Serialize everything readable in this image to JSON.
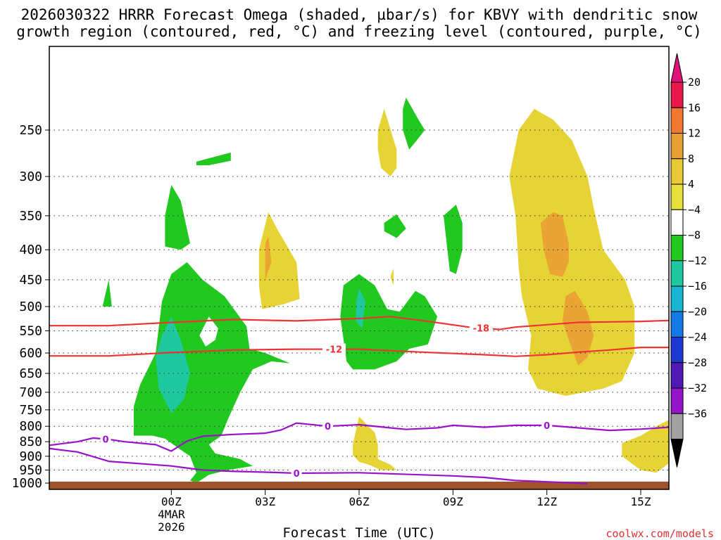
{
  "chart_data": {
    "type": "heatmap",
    "title_line1": "2026030322 HRRR Forecast Omega (shaded, µbar/s) for KBVY with dendritic snow",
    "title_line2": "growth region (contoured, red, °C) and freezing level (contoured, purple, °C)",
    "xlabel": "Forecast Time (UTC)",
    "credit": "coolwx.com/models",
    "x_range_hours": [
      -3.9,
      15.9
    ],
    "y_range_hpa": [
      1025,
      180
    ],
    "x_ticks": [
      {
        "hour": 0,
        "label": "00Z",
        "sub1": "4MAR",
        "sub2": "2026"
      },
      {
        "hour": 3,
        "label": "03Z"
      },
      {
        "hour": 6,
        "label": "06Z"
      },
      {
        "hour": 9,
        "label": "09Z"
      },
      {
        "hour": 12,
        "label": "12Z"
      },
      {
        "hour": 15,
        "label": "15Z"
      }
    ],
    "y_ticks": [
      250,
      300,
      350,
      400,
      450,
      500,
      550,
      600,
      650,
      700,
      750,
      800,
      850,
      900,
      950,
      1000
    ],
    "colorbar": {
      "labels": [
        "20",
        "16",
        "12",
        "8",
        "4",
        "−4",
        "−8",
        "−12",
        "−16",
        "−20",
        "−24",
        "−28",
        "−32",
        "−36"
      ],
      "colors": [
        "#e8194a",
        "#f07830",
        "#e9a032",
        "#e6c934",
        "#e9df3c",
        "#ffffff",
        "#20c820",
        "#20c8a0",
        "#18b4d2",
        "#1478e6",
        "#2038d2",
        "#5018b4",
        "#9614c8",
        "#a0a0a0",
        "#000000",
        "#e0117a"
      ]
    },
    "contours": [
      {
        "name": "temp -18C",
        "color": "#ee3333",
        "label": "-18",
        "label_hour": 9.9,
        "points": [
          [
            -3.9,
            539
          ],
          [
            -2,
            539
          ],
          [
            0,
            532
          ],
          [
            2,
            526
          ],
          [
            4,
            529
          ],
          [
            6,
            524
          ],
          [
            7,
            520
          ],
          [
            8,
            528
          ],
          [
            9.5,
            542
          ],
          [
            10.5,
            547
          ],
          [
            11,
            542
          ],
          [
            13,
            532
          ],
          [
            15,
            530
          ],
          [
            15.9,
            528
          ]
        ]
      },
      {
        "name": "temp -12C",
        "color": "#ee3333",
        "label": "-12",
        "label_hour": 5.2,
        "points": [
          [
            -3.9,
            607
          ],
          [
            -2,
            607
          ],
          [
            0,
            599
          ],
          [
            2,
            593
          ],
          [
            4,
            591
          ],
          [
            6,
            591
          ],
          [
            8,
            598
          ],
          [
            10,
            604
          ],
          [
            11,
            608
          ],
          [
            12,
            604
          ],
          [
            13,
            598
          ],
          [
            14,
            593
          ],
          [
            15,
            587
          ],
          [
            15.9,
            587
          ]
        ]
      },
      {
        "name": "freezing level 0C upper",
        "color": "#9b10c9",
        "label": "0",
        "label_hour": 5.0,
        "labels_extra": [
          {
            "hour": -2.1,
            "label": "0"
          },
          {
            "hour": 12.0,
            "label": "0"
          }
        ],
        "points": [
          [
            -3.9,
            862
          ],
          [
            -3,
            850
          ],
          [
            -2.5,
            838
          ],
          [
            -2,
            842
          ],
          [
            -1.5,
            850
          ],
          [
            -0.5,
            860
          ],
          [
            0,
            882
          ],
          [
            0.5,
            848
          ],
          [
            1,
            832
          ],
          [
            2,
            826
          ],
          [
            3,
            822
          ],
          [
            3.5,
            812
          ],
          [
            4,
            790
          ],
          [
            5,
            800
          ],
          [
            6,
            795
          ],
          [
            7,
            805
          ],
          [
            7.5,
            810
          ],
          [
            8.5,
            805
          ],
          [
            9,
            797
          ],
          [
            10,
            803
          ],
          [
            11,
            797
          ],
          [
            12,
            797
          ],
          [
            13,
            805
          ],
          [
            14,
            813
          ],
          [
            15,
            809
          ],
          [
            15.9,
            803
          ]
        ]
      },
      {
        "name": "freezing level 0C lower",
        "color": "#9b10c9",
        "label": "0",
        "label_hour": 4.0,
        "points": [
          [
            -3.9,
            873
          ],
          [
            -3,
            885
          ],
          [
            -2,
            918
          ],
          [
            0,
            935
          ],
          [
            1,
            950
          ],
          [
            2,
            955
          ],
          [
            3,
            958
          ],
          [
            4,
            962
          ],
          [
            6,
            960
          ],
          [
            9,
            972
          ],
          [
            10,
            978
          ],
          [
            11,
            990
          ],
          [
            12,
            995
          ],
          [
            13,
            1000
          ],
          [
            13.3,
            1003
          ]
        ]
      }
    ],
    "regions_note": "shaded omega polygons in data units [hour, hPa]",
    "regions": [
      {
        "level": "-8",
        "color": "#20c820",
        "points": [
          [
            -1.2,
            830
          ],
          [
            -1.2,
            740
          ],
          [
            -1,
            680
          ],
          [
            -0.5,
            600
          ],
          [
            -0.3,
            490
          ],
          [
            0,
            440
          ],
          [
            0.5,
            420
          ],
          [
            1,
            450
          ],
          [
            1.7,
            480
          ],
          [
            2,
            505
          ],
          [
            2.4,
            540
          ],
          [
            2.5,
            590
          ],
          [
            3,
            600
          ],
          [
            3.8,
            625
          ],
          [
            3.2,
            620
          ],
          [
            2.6,
            640
          ],
          [
            2.2,
            700
          ],
          [
            1.8,
            780
          ],
          [
            1.6,
            830
          ],
          [
            1.2,
            860
          ],
          [
            1.4,
            890
          ],
          [
            2.2,
            910
          ],
          [
            2.6,
            935
          ],
          [
            1.8,
            950
          ],
          [
            1.2,
            968
          ],
          [
            0.8,
            1000
          ],
          [
            0.6,
            990
          ],
          [
            0.8,
            960
          ],
          [
            0.6,
            900
          ],
          [
            0.2,
            870
          ],
          [
            -0.2,
            840
          ],
          [
            -0.6,
            830
          ]
        ]
      },
      {
        "level": "-8 hole",
        "color": "#ffffff",
        "points": [
          [
            1.2,
            520
          ],
          [
            1.5,
            545
          ],
          [
            1.4,
            570
          ],
          [
            1.1,
            585
          ],
          [
            0.9,
            560
          ]
        ]
      },
      {
        "level": "-12",
        "color": "#20c8a0",
        "points": [
          [
            0,
            520
          ],
          [
            0.3,
            570
          ],
          [
            0.6,
            650
          ],
          [
            0.4,
            720
          ],
          [
            0,
            760
          ],
          [
            -0.4,
            690
          ],
          [
            -0.5,
            610
          ],
          [
            -0.3,
            560
          ]
        ]
      },
      {
        "level": "-8",
        "color": "#20c820",
        "points": [
          [
            -2.2,
            500
          ],
          [
            -2.0,
            450
          ],
          [
            -1.9,
            500
          ]
        ]
      },
      {
        "level": "-8",
        "color": "#20c820",
        "points": [
          [
            0.8,
            283
          ],
          [
            1.9,
            273
          ],
          [
            1.9,
            282
          ],
          [
            1.2,
            287
          ],
          [
            0.8,
            287
          ]
        ]
      },
      {
        "level": "-8",
        "color": "#20c820",
        "points": [
          [
            -0.2,
            350
          ],
          [
            0,
            310
          ],
          [
            0.3,
            330
          ],
          [
            0.6,
            390
          ],
          [
            0.3,
            400
          ],
          [
            -0.2,
            395
          ]
        ]
      },
      {
        "level": "-8",
        "color": "#20c820",
        "points": [
          [
            5.6,
            620
          ],
          [
            5.4,
            520
          ],
          [
            5.5,
            460
          ],
          [
            6,
            440
          ],
          [
            6.5,
            460
          ],
          [
            6.9,
            505
          ],
          [
            7.3,
            510
          ],
          [
            7.8,
            470
          ],
          [
            8.1,
            480
          ],
          [
            8.5,
            520
          ],
          [
            8.2,
            580
          ],
          [
            7.6,
            590
          ],
          [
            7.2,
            620
          ],
          [
            6.5,
            640
          ],
          [
            5.8,
            640
          ]
        ]
      },
      {
        "level": "-12",
        "color": "#20c8a0",
        "points": [
          [
            6.0,
            465
          ],
          [
            6.2,
            490
          ],
          [
            6.1,
            545
          ],
          [
            5.9,
            530
          ],
          [
            5.9,
            495
          ]
        ]
      },
      {
        "level": "-8",
        "color": "#20c820",
        "points": [
          [
            7.5,
            220
          ],
          [
            7.9,
            240
          ],
          [
            8.1,
            250
          ],
          [
            7.8,
            262
          ],
          [
            7.6,
            270
          ],
          [
            7.4,
            250
          ],
          [
            7.4,
            230
          ]
        ]
      },
      {
        "level": "-8",
        "color": "#20c820",
        "points": [
          [
            6.8,
            360
          ],
          [
            7.2,
            348
          ],
          [
            7.5,
            368
          ],
          [
            7.2,
            382
          ],
          [
            6.8,
            372
          ]
        ]
      },
      {
        "level": "-8",
        "color": "#20c820",
        "points": [
          [
            8.8,
            390
          ],
          [
            8.7,
            350
          ],
          [
            9.1,
            335
          ],
          [
            9.3,
            360
          ],
          [
            9.3,
            400
          ],
          [
            9.1,
            440
          ],
          [
            8.9,
            435
          ]
        ]
      },
      {
        "level": "4",
        "color": "#e6d436",
        "points": [
          [
            2.8,
            400
          ],
          [
            3.1,
            345
          ],
          [
            3.4,
            370
          ],
          [
            4,
            420
          ],
          [
            4.1,
            485
          ],
          [
            3.6,
            495
          ],
          [
            2.9,
            505
          ],
          [
            2.8,
            460
          ]
        ]
      },
      {
        "level": "8",
        "color": "#e9a434",
        "points": [
          [
            3.0,
            390
          ],
          [
            3.1,
            380
          ],
          [
            3.2,
            420
          ],
          [
            3.0,
            450
          ]
        ]
      },
      {
        "level": "4",
        "color": "#e6d436",
        "points": [
          [
            6.6,
            250
          ],
          [
            6.8,
            230
          ],
          [
            7.2,
            270
          ],
          [
            7.2,
            290
          ],
          [
            7,
            300
          ],
          [
            6.7,
            290
          ],
          [
            6.6,
            270
          ]
        ]
      },
      {
        "level": "4",
        "color": "#e6d436",
        "points": [
          [
            7.0,
            445
          ],
          [
            7.1,
            430
          ],
          [
            7.1,
            460
          ]
        ]
      },
      {
        "level": "4",
        "color": "#e6d436",
        "points": [
          [
            5.8,
            860
          ],
          [
            6.0,
            770
          ],
          [
            6.3,
            800
          ],
          [
            6.5,
            820
          ],
          [
            6.6,
            860
          ],
          [
            6.6,
            910
          ],
          [
            7.0,
            930
          ],
          [
            7.2,
            950
          ],
          [
            6.7,
            950
          ],
          [
            6.3,
            930
          ],
          [
            6,
            920
          ],
          [
            5.8,
            895
          ]
        ]
      },
      {
        "level": "4",
        "color": "#e6d436",
        "points": [
          [
            11,
            350
          ],
          [
            10.8,
            300
          ],
          [
            11.1,
            250
          ],
          [
            11.6,
            230
          ],
          [
            12.2,
            240
          ],
          [
            12.8,
            260
          ],
          [
            13.3,
            300
          ],
          [
            13.5,
            340
          ],
          [
            13.8,
            400
          ],
          [
            14.5,
            450
          ],
          [
            14.8,
            500
          ],
          [
            14.8,
            600
          ],
          [
            14.4,
            670
          ],
          [
            13.8,
            690
          ],
          [
            13.2,
            700
          ],
          [
            12.6,
            710
          ],
          [
            11.7,
            690
          ],
          [
            11.4,
            640
          ],
          [
            11.5,
            560
          ],
          [
            11.2,
            480
          ],
          [
            11.1,
            430
          ]
        ]
      },
      {
        "level": "8",
        "color": "#e9a434",
        "points": [
          [
            11.8,
            360
          ],
          [
            12.2,
            345
          ],
          [
            12.5,
            350
          ],
          [
            12.7,
            390
          ],
          [
            12.7,
            420
          ],
          [
            12.5,
            445
          ],
          [
            12.1,
            440
          ],
          [
            11.9,
            400
          ]
        ]
      },
      {
        "level": "8",
        "color": "#e9a434",
        "points": [
          [
            12.5,
            530
          ],
          [
            12.6,
            480
          ],
          [
            12.9,
            470
          ],
          [
            13.3,
            510
          ],
          [
            13.5,
            560
          ],
          [
            13.3,
            610
          ],
          [
            13.0,
            630
          ],
          [
            12.8,
            590
          ]
        ]
      },
      {
        "level": "4",
        "color": "#e6d436",
        "points": [
          [
            15.9,
            780
          ],
          [
            15.9,
            925
          ],
          [
            15.5,
            960
          ],
          [
            15,
            950
          ],
          [
            14.4,
            900
          ],
          [
            14.4,
            855
          ],
          [
            15,
            830
          ],
          [
            15.5,
            800
          ]
        ]
      }
    ]
  }
}
